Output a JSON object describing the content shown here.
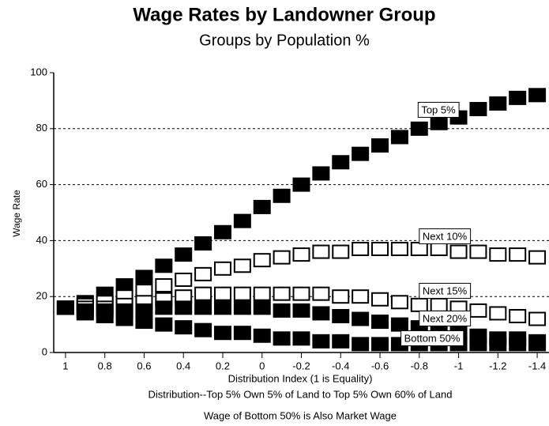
{
  "chart_data": {
    "type": "scatter",
    "title": "Wage Rates by Landowner Group",
    "subtitle": "Groups by Population %",
    "y_label": "Wage Rate",
    "x_label": "Distribution Index (1 is Equality)",
    "notes": [
      "Distribution--Top 5% Own 5% of Land to Top 5% Own 60% of Land",
      "Wage of Bottom 50% is Also Market Wage"
    ],
    "x": [
      1,
      0.9,
      0.8,
      0.7,
      0.6,
      0.5,
      0.4,
      0.3,
      0.2,
      0.1,
      0,
      -0.1,
      -0.2,
      -0.3,
      -0.4,
      -0.5,
      -0.6,
      -0.7,
      -0.8,
      -0.9,
      -1,
      -1.1,
      -1.2,
      -1.3,
      -1.4
    ],
    "series": [
      {
        "name": "Top 5%",
        "color": "#000000",
        "values": [
          16,
          18,
          21,
          24,
          27,
          31,
          35,
          39,
          43,
          47,
          52,
          56,
          60,
          64,
          68,
          71,
          74,
          77,
          80,
          82,
          84,
          87,
          89,
          91,
          92
        ]
      },
      {
        "name": "Next 10%",
        "color": "#ffffff",
        "values": [
          16,
          17,
          18,
          20,
          22,
          24,
          26,
          28,
          30,
          31,
          33,
          34,
          35,
          36,
          36,
          37,
          37,
          37,
          37,
          37,
          36,
          36,
          35,
          35,
          34
        ]
      },
      {
        "name": "Next 15%",
        "color": "#ffffff",
        "values": [
          16,
          16,
          16,
          17,
          18,
          19,
          20,
          21,
          21,
          21,
          21,
          21,
          21,
          21,
          20,
          20,
          19,
          18,
          17,
          17,
          16,
          15,
          14,
          13,
          12
        ]
      },
      {
        "name": "Next 20%",
        "color": "#000000",
        "values": [
          16,
          15,
          15,
          15,
          15,
          16,
          16,
          16,
          16,
          16,
          16,
          15,
          15,
          14,
          13,
          12,
          11,
          10,
          9,
          8,
          7,
          6,
          5,
          5,
          4
        ]
      },
      {
        "name": "Bottom 50%",
        "color": "#000000",
        "values": [
          16,
          14,
          13,
          12,
          11,
          10,
          9,
          8,
          7,
          7,
          6,
          5,
          5,
          4,
          4,
          3,
          3,
          3,
          3,
          3,
          3,
          3,
          3,
          3,
          3
        ]
      }
    ],
    "xlim": [
      1.06,
      -1.46
    ],
    "xticks": [
      1,
      0.8,
      0.6,
      0.4,
      0.2,
      0,
      -0.2,
      -0.4,
      -0.6,
      -0.8,
      -1,
      -1.2,
      -1.4
    ],
    "ylim": [
      0,
      100
    ],
    "yticks": [
      0,
      20,
      40,
      60,
      80,
      100
    ],
    "grid": true
  }
}
